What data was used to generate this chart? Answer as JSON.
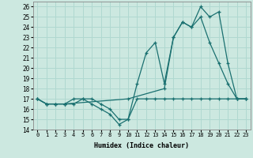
{
  "xlabel": "Humidex (Indice chaleur)",
  "xlim": [
    -0.5,
    23.5
  ],
  "ylim": [
    14,
    26.5
  ],
  "yticks": [
    14,
    15,
    16,
    17,
    18,
    19,
    20,
    21,
    22,
    23,
    24,
    25,
    26
  ],
  "xticks": [
    0,
    1,
    2,
    3,
    4,
    5,
    6,
    7,
    8,
    9,
    10,
    11,
    12,
    13,
    14,
    15,
    16,
    17,
    18,
    19,
    20,
    21,
    22,
    23
  ],
  "bg_color": "#cce8e0",
  "line_color": "#1a7070",
  "grid_color": "#b0d8d0",
  "lines": [
    {
      "x": [
        0,
        1,
        2,
        3,
        4,
        5,
        6,
        7,
        8,
        9,
        10,
        11,
        12,
        13,
        14,
        15,
        16,
        17,
        18,
        19,
        20,
        21,
        22,
        23
      ],
      "y": [
        17,
        16.5,
        16.5,
        16.5,
        16.5,
        17,
        17,
        16.5,
        16,
        15,
        15,
        17,
        17,
        17,
        17,
        17,
        17,
        17,
        17,
        17,
        17,
        17,
        17,
        17
      ]
    },
    {
      "x": [
        0,
        1,
        2,
        3,
        4,
        5,
        6,
        7,
        8,
        9,
        10,
        11,
        12,
        13,
        14,
        15,
        16,
        17,
        18,
        19,
        20,
        21,
        22,
        23
      ],
      "y": [
        17,
        16.5,
        16.5,
        16.5,
        17,
        17,
        16.5,
        16,
        15.5,
        14.5,
        15,
        18.5,
        21.5,
        22.5,
        18.5,
        23,
        24.5,
        24,
        25,
        22.5,
        20.5,
        18.5,
        17,
        17
      ]
    },
    {
      "x": [
        0,
        1,
        2,
        3,
        10,
        14,
        15,
        16,
        17,
        18,
        19,
        20,
        21,
        22,
        23
      ],
      "y": [
        17,
        16.5,
        16.5,
        16.5,
        17,
        18,
        23,
        24.5,
        24,
        26,
        25,
        25.5,
        20.5,
        17,
        17
      ]
    }
  ]
}
